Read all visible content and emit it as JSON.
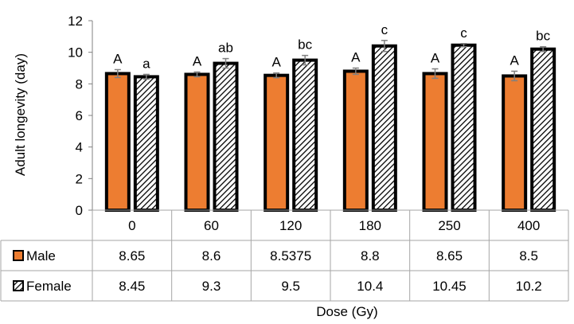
{
  "chart_data": {
    "type": "bar",
    "ylabel": "Adult longevity (day)",
    "xlabel": "Dose (Gy)",
    "ylim": [
      0,
      12
    ],
    "yticks": [
      0,
      2,
      4,
      6,
      8,
      10,
      12
    ],
    "grid": false,
    "legend": "data-table-left",
    "categories": [
      "0",
      "60",
      "120",
      "180",
      "250",
      "400"
    ],
    "series": [
      {
        "name": "Male",
        "color": "#ED7D31",
        "pattern": "solid",
        "values": [
          8.65,
          8.6,
          8.5375,
          8.8,
          8.65,
          8.5
        ],
        "value_labels": [
          "8.65",
          "8.6",
          "8.5375",
          "8.8",
          "8.65",
          "8.5"
        ],
        "error": [
          0.25,
          0.15,
          0.15,
          0.2,
          0.3,
          0.3
        ],
        "letters": [
          "A",
          "A",
          "A",
          "A",
          "A",
          "A"
        ]
      },
      {
        "name": "Female",
        "color": "#000000",
        "pattern": "diagonal-hatch",
        "values": [
          8.45,
          9.3,
          9.5,
          10.4,
          10.45,
          10.2
        ],
        "value_labels": [
          "8.45",
          "9.3",
          "9.5",
          "10.4",
          "10.45",
          "10.2"
        ],
        "error": [
          0.15,
          0.3,
          0.3,
          0.35,
          0.1,
          0.15
        ],
        "letters": [
          "a",
          "ab",
          "bc",
          "c",
          "c",
          "bc"
        ]
      }
    ]
  }
}
